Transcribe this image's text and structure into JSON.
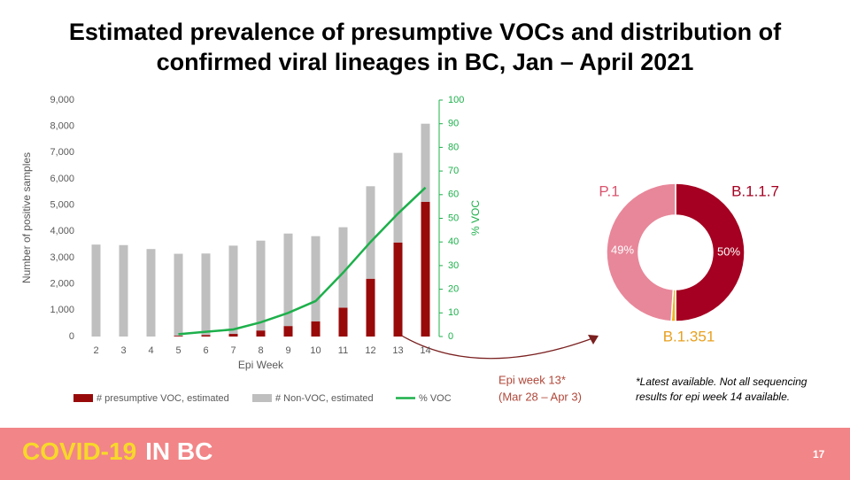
{
  "title": [
    "Estimated prevalence of presumptive VOCs and distribution of",
    "confirmed viral lineages in BC, Jan – April 2021"
  ],
  "chart_data": [
    {
      "type": "combo",
      "x_label": "Epi Week",
      "y_label": "Number of positive samples",
      "y2_label": "% VOC",
      "categories": [
        "2",
        "3",
        "4",
        "5",
        "6",
        "7",
        "8",
        "9",
        "10",
        "11",
        "12",
        "13",
        "14"
      ],
      "ylim": [
        0,
        9000
      ],
      "yticks": [
        0,
        {
          "value": 1000,
          "label": "1,000"
        },
        {
          "value": 2000,
          "label": "2,000"
        },
        {
          "value": 3000,
          "label": "3,000"
        },
        {
          "value": 4000,
          "label": "4,000"
        },
        {
          "value": 5000,
          "label": "5,000"
        },
        {
          "value": 6000,
          "label": "6,000"
        },
        {
          "value": 7000,
          "label": "7,000"
        },
        {
          "value": 8000,
          "label": "8,000"
        },
        {
          "value": 9000,
          "label": "9,000"
        }
      ],
      "y2lim": [
        0,
        100
      ],
      "y2ticks": [
        0,
        10,
        20,
        30,
        40,
        50,
        60,
        70,
        80,
        90,
        100
      ],
      "grid": false,
      "series": [
        {
          "name": "# presumptive VOC, estimated",
          "color": "#980a0a",
          "kind": "bar",
          "values": [
            0,
            0,
            0,
            30,
            60,
            100,
            230,
            400,
            580,
            1100,
            2200,
            3580,
            5130
          ]
        },
        {
          "name": "# Non-VOC, estimated",
          "color": "#bfbfbf",
          "kind": "bar",
          "values": [
            3500,
            3480,
            3330,
            3120,
            3100,
            3360,
            3420,
            3520,
            3240,
            3060,
            3520,
            3410,
            2970
          ]
        },
        {
          "name": "% VOC",
          "color": "#1db04b",
          "kind": "line",
          "axis": "y2",
          "values": [
            null,
            null,
            null,
            1,
            2,
            3,
            6,
            10,
            15,
            27,
            40,
            52,
            63
          ]
        }
      ]
    },
    {
      "type": "donut",
      "categories": [
        "B.1.1.7",
        "B.1.351",
        "P.1"
      ],
      "values": [
        50,
        1,
        49
      ],
      "value_labels": [
        "50%",
        null,
        "49%"
      ],
      "colors": [
        "#a50021",
        "#f0b323",
        "#e8879a"
      ],
      "label_colors": [
        "#a50021",
        "#e8a020",
        "#d9546e"
      ]
    }
  ],
  "annotation": [
    "Epi week 13*",
    "(Mar 28 – Apr 3)"
  ],
  "footnote": [
    "*Latest available. Not all sequencing",
    "results for epi week 14 available."
  ],
  "footer": {
    "brand_a": "COVID-19",
    "brand_b": "IN BC",
    "page": "17"
  }
}
